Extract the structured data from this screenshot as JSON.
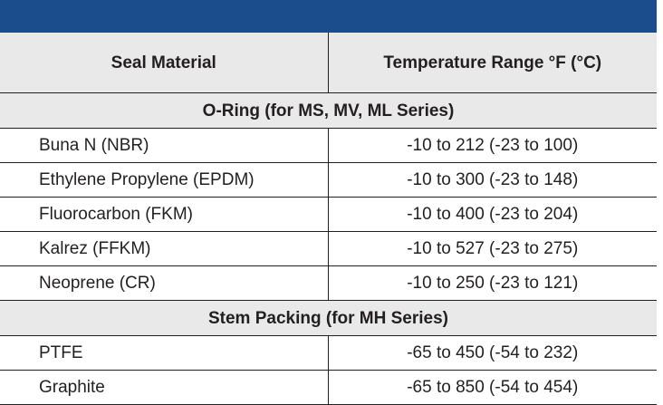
{
  "header": {
    "material_label": "Seal Material",
    "temperature_label": "Temperature Range °F (°C)"
  },
  "sections": [
    {
      "title": "O-Ring (for MS, MV, ML Series)",
      "rows": [
        {
          "material": "Buna N (NBR)",
          "range": "-10 to 212 (-23 to 100)"
        },
        {
          "material": "Ethylene Propylene (EPDM)",
          "range": "-10 to 300 (-23 to 148)"
        },
        {
          "material": "Fluorocarbon (FKM)",
          "range": "-10 to 400 (-23 to 204)"
        },
        {
          "material": "Kalrez (FFKM)",
          "range": "-10 to 527 (-23 to 275)"
        },
        {
          "material": "Neoprene (CR)",
          "range": "-10 to 250 (-23 to 121)"
        }
      ]
    },
    {
      "title": "Stem Packing (for MH Series)",
      "rows": [
        {
          "material": "PTFE",
          "range": "-65 to 450 (-54 to 232)"
        },
        {
          "material": "Graphite",
          "range": "-65 to 850 (-54 to 454)"
        }
      ]
    }
  ],
  "colors": {
    "header_bar": "#1b4c8c",
    "header_bg": "#eae9e9",
    "text": "#231f20"
  }
}
